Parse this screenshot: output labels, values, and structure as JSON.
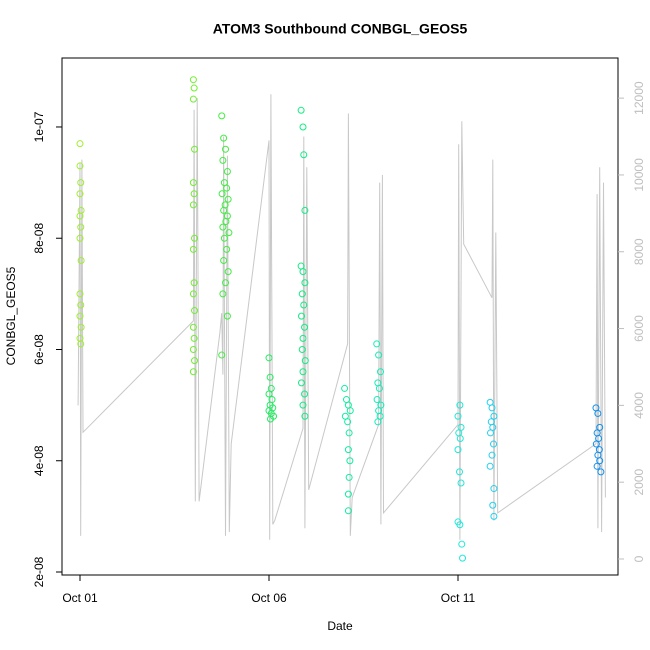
{
  "chart_data": {
    "type": "scatter",
    "title": "ATOM3 Southbound CONBGL_GEOS5",
    "xlabel": "Date",
    "ylabel": "CONBGL_GEOS5",
    "xlim": [
      -0.476,
      14.233
    ],
    "xticks": [
      {
        "value": 0,
        "label": "Oct 01"
      },
      {
        "value": 5,
        "label": "Oct 06"
      },
      {
        "value": 10,
        "label": "Oct 11"
      }
    ],
    "ylim": [
      1.946e-08,
      1.124e-07
    ],
    "yticks": [
      {
        "value": 2e-08,
        "label": "2e-08"
      },
      {
        "value": 4e-08,
        "label": "4e-08"
      },
      {
        "value": 6e-08,
        "label": "6e-08"
      },
      {
        "value": 8e-08,
        "label": "8e-08"
      },
      {
        "value": 1e-07,
        "label": "1e-07"
      }
    ],
    "y2lim": [
      -417,
      13045
    ],
    "y2ticks": [
      0,
      2000,
      4000,
      6000,
      8000,
      10000,
      12000
    ],
    "y2color": "#bebebe",
    "series": [
      {
        "type": "line",
        "axis": "y2",
        "color": "#c8c8c8",
        "x": [
          -0.05,
          0,
          0.02,
          0.05,
          0.08,
          3.0,
          3.02,
          3.05,
          3.1,
          3.15,
          3.7,
          3.75,
          3.78,
          3.8,
          3.85,
          3.9,
          3.95,
          4.0,
          5.0,
          5.02,
          5.05,
          5.1,
          5.15,
          5.9,
          5.92,
          5.95,
          6.0,
          6.05,
          7.08,
          7.1,
          7.15,
          7.2,
          7.9,
          7.93,
          7.96,
          8.0,
          8.03,
          10.0,
          10.02,
          10.05,
          10.1,
          10.15,
          10.9,
          10.92,
          10.95,
          11.0,
          11.05,
          13.65,
          13.68,
          13.7,
          13.75,
          13.8,
          13.85,
          13.9
        ],
        "values": [
          4000,
          10300,
          600,
          10400,
          3300,
          6200,
          11700,
          1500,
          12000,
          1500,
          5900,
          6400,
          4800,
          11000,
          600,
          10500,
          700,
          3000,
          10900,
          500,
          12100,
          900,
          1000,
          3400,
          11000,
          800,
          10200,
          1800,
          5600,
          11600,
          600,
          1600,
          3500,
          9800,
          900,
          10000,
          1200,
          3500,
          10800,
          500,
          11400,
          8200,
          6800,
          10400,
          1000,
          8500,
          1200,
          3000,
          9500,
          800,
          10200,
          700,
          9800,
          1600
        ]
      },
      {
        "color": "#a0ee30",
        "x": [
          0,
          0,
          0.02,
          0,
          0.03,
          0,
          0.02,
          0,
          0.03,
          0,
          0.02,
          0,
          0.03,
          0,
          0.02
        ],
        "values": [
          9.7e-08,
          9.3e-08,
          9e-08,
          8.8e-08,
          8.5e-08,
          8.4e-08,
          8.2e-08,
          8e-08,
          7.6e-08,
          7e-08,
          6.8e-08,
          6.6e-08,
          6.4e-08,
          6.2e-08,
          6.1e-08
        ]
      },
      {
        "color": "#70ee30",
        "x": [
          3.0,
          3.02,
          3.0,
          3.03,
          3.0,
          3.02,
          3.0,
          3.03,
          3.0,
          3.02,
          3.0,
          3.03,
          3.0,
          3.02,
          3.0,
          3.03,
          3.0
        ],
        "values": [
          1.085e-07,
          1.07e-07,
          1.05e-07,
          9.6e-08,
          9e-08,
          8.8e-08,
          8.6e-08,
          8e-08,
          7.8e-08,
          7.2e-08,
          7e-08,
          6.7e-08,
          6.4e-08,
          6.2e-08,
          6e-08,
          5.8e-08,
          5.6e-08
        ]
      },
      {
        "color": "#40ee40",
        "x": [
          3.75,
          3.8,
          3.85,
          3.78,
          3.9,
          3.82,
          3.88,
          3.76,
          3.92,
          3.84,
          3.8,
          3.9,
          3.86,
          3.78,
          3.94,
          3.82,
          3.88,
          3.8,
          3.92,
          3.85,
          3.78,
          3.9,
          3.75
        ],
        "values": [
          1.02e-07,
          9.8e-08,
          9.6e-08,
          9.4e-08,
          9.2e-08,
          9e-08,
          8.9e-08,
          8.8e-08,
          8.7e-08,
          8.6e-08,
          8.5e-08,
          8.4e-08,
          8.3e-08,
          8.2e-08,
          8.1e-08,
          8e-08,
          7.8e-08,
          7.6e-08,
          7.4e-08,
          7.2e-08,
          7e-08,
          6.6e-08,
          5.9e-08
        ]
      },
      {
        "color": "#20ee60",
        "x": [
          5.0,
          5.03,
          5.06,
          5.0,
          5.08,
          5.03,
          5.1,
          5.0,
          5.06,
          5.12,
          5.04
        ],
        "values": [
          5.85e-08,
          5.5e-08,
          5.3e-08,
          5.2e-08,
          5.1e-08,
          5e-08,
          4.95e-08,
          4.9e-08,
          4.85e-08,
          4.8e-08,
          4.75e-08
        ]
      },
      {
        "color": "#10ee80",
        "x": [
          5.85,
          5.9,
          5.92,
          5.95,
          5.85,
          5.9,
          5.95,
          5.88,
          5.92,
          5.86,
          5.94,
          5.9,
          5.88,
          5.96,
          5.9,
          5.86,
          5.94,
          5.9,
          5.95
        ],
        "values": [
          1.03e-07,
          1e-07,
          9.5e-08,
          8.5e-08,
          7.5e-08,
          7.4e-08,
          7.2e-08,
          7e-08,
          6.8e-08,
          6.6e-08,
          6.4e-08,
          6.2e-08,
          6e-08,
          5.8e-08,
          5.6e-08,
          5.4e-08,
          5.2e-08,
          5e-08,
          4.8e-08
        ]
      },
      {
        "color": "#10eea0",
        "x": [
          7.0,
          7.05,
          7.1,
          7.15,
          7.02,
          7.08,
          7.12,
          7.1,
          7.14,
          7.12,
          7.1,
          7.1
        ],
        "values": [
          5.3e-08,
          5.1e-08,
          5e-08,
          4.9e-08,
          4.8e-08,
          4.7e-08,
          4.5e-08,
          4.2e-08,
          4e-08,
          3.7e-08,
          3.4e-08,
          3.1e-08
        ]
      },
      {
        "color": "#10eeb8",
        "x": [
          7.85,
          7.9,
          7.95,
          7.88,
          7.92,
          7.86,
          7.96,
          7.9,
          7.94,
          7.88
        ],
        "values": [
          6.1e-08,
          5.9e-08,
          5.6e-08,
          5.4e-08,
          5.3e-08,
          5.1e-08,
          5e-08,
          4.9e-08,
          4.8e-08,
          4.7e-08
        ]
      },
      {
        "color": "#20e8d8",
        "x": [
          10.05,
          10.0,
          10.08,
          10.02,
          10.06,
          10.0,
          10.04,
          10.08,
          10.0,
          10.05,
          10.1,
          10.12
        ],
        "values": [
          5e-08,
          4.8e-08,
          4.6e-08,
          4.5e-08,
          4.4e-08,
          4.2e-08,
          3.8e-08,
          3.6e-08,
          2.9e-08,
          2.85e-08,
          2.5e-08,
          2.25e-08
        ]
      },
      {
        "color": "#20d0ee",
        "x": [
          10.85,
          10.9,
          10.95,
          10.88,
          10.92,
          10.86,
          10.94,
          10.9,
          10.85,
          10.95,
          10.92,
          10.95
        ],
        "values": [
          5.05e-08,
          4.95e-08,
          4.8e-08,
          4.7e-08,
          4.6e-08,
          4.5e-08,
          4.3e-08,
          4.1e-08,
          3.9e-08,
          3.5e-08,
          3.2e-08,
          3e-08
        ]
      },
      {
        "color": "#1090ee",
        "x": [
          13.65,
          13.7,
          13.75,
          13.68,
          13.72,
          13.66,
          13.74,
          13.7,
          13.75,
          13.68,
          13.78
        ],
        "values": [
          4.95e-08,
          4.85e-08,
          4.6e-08,
          4.5e-08,
          4.4e-08,
          4.3e-08,
          4.2e-08,
          4.1e-08,
          4e-08,
          3.9e-08,
          3.8e-08
        ]
      }
    ]
  }
}
